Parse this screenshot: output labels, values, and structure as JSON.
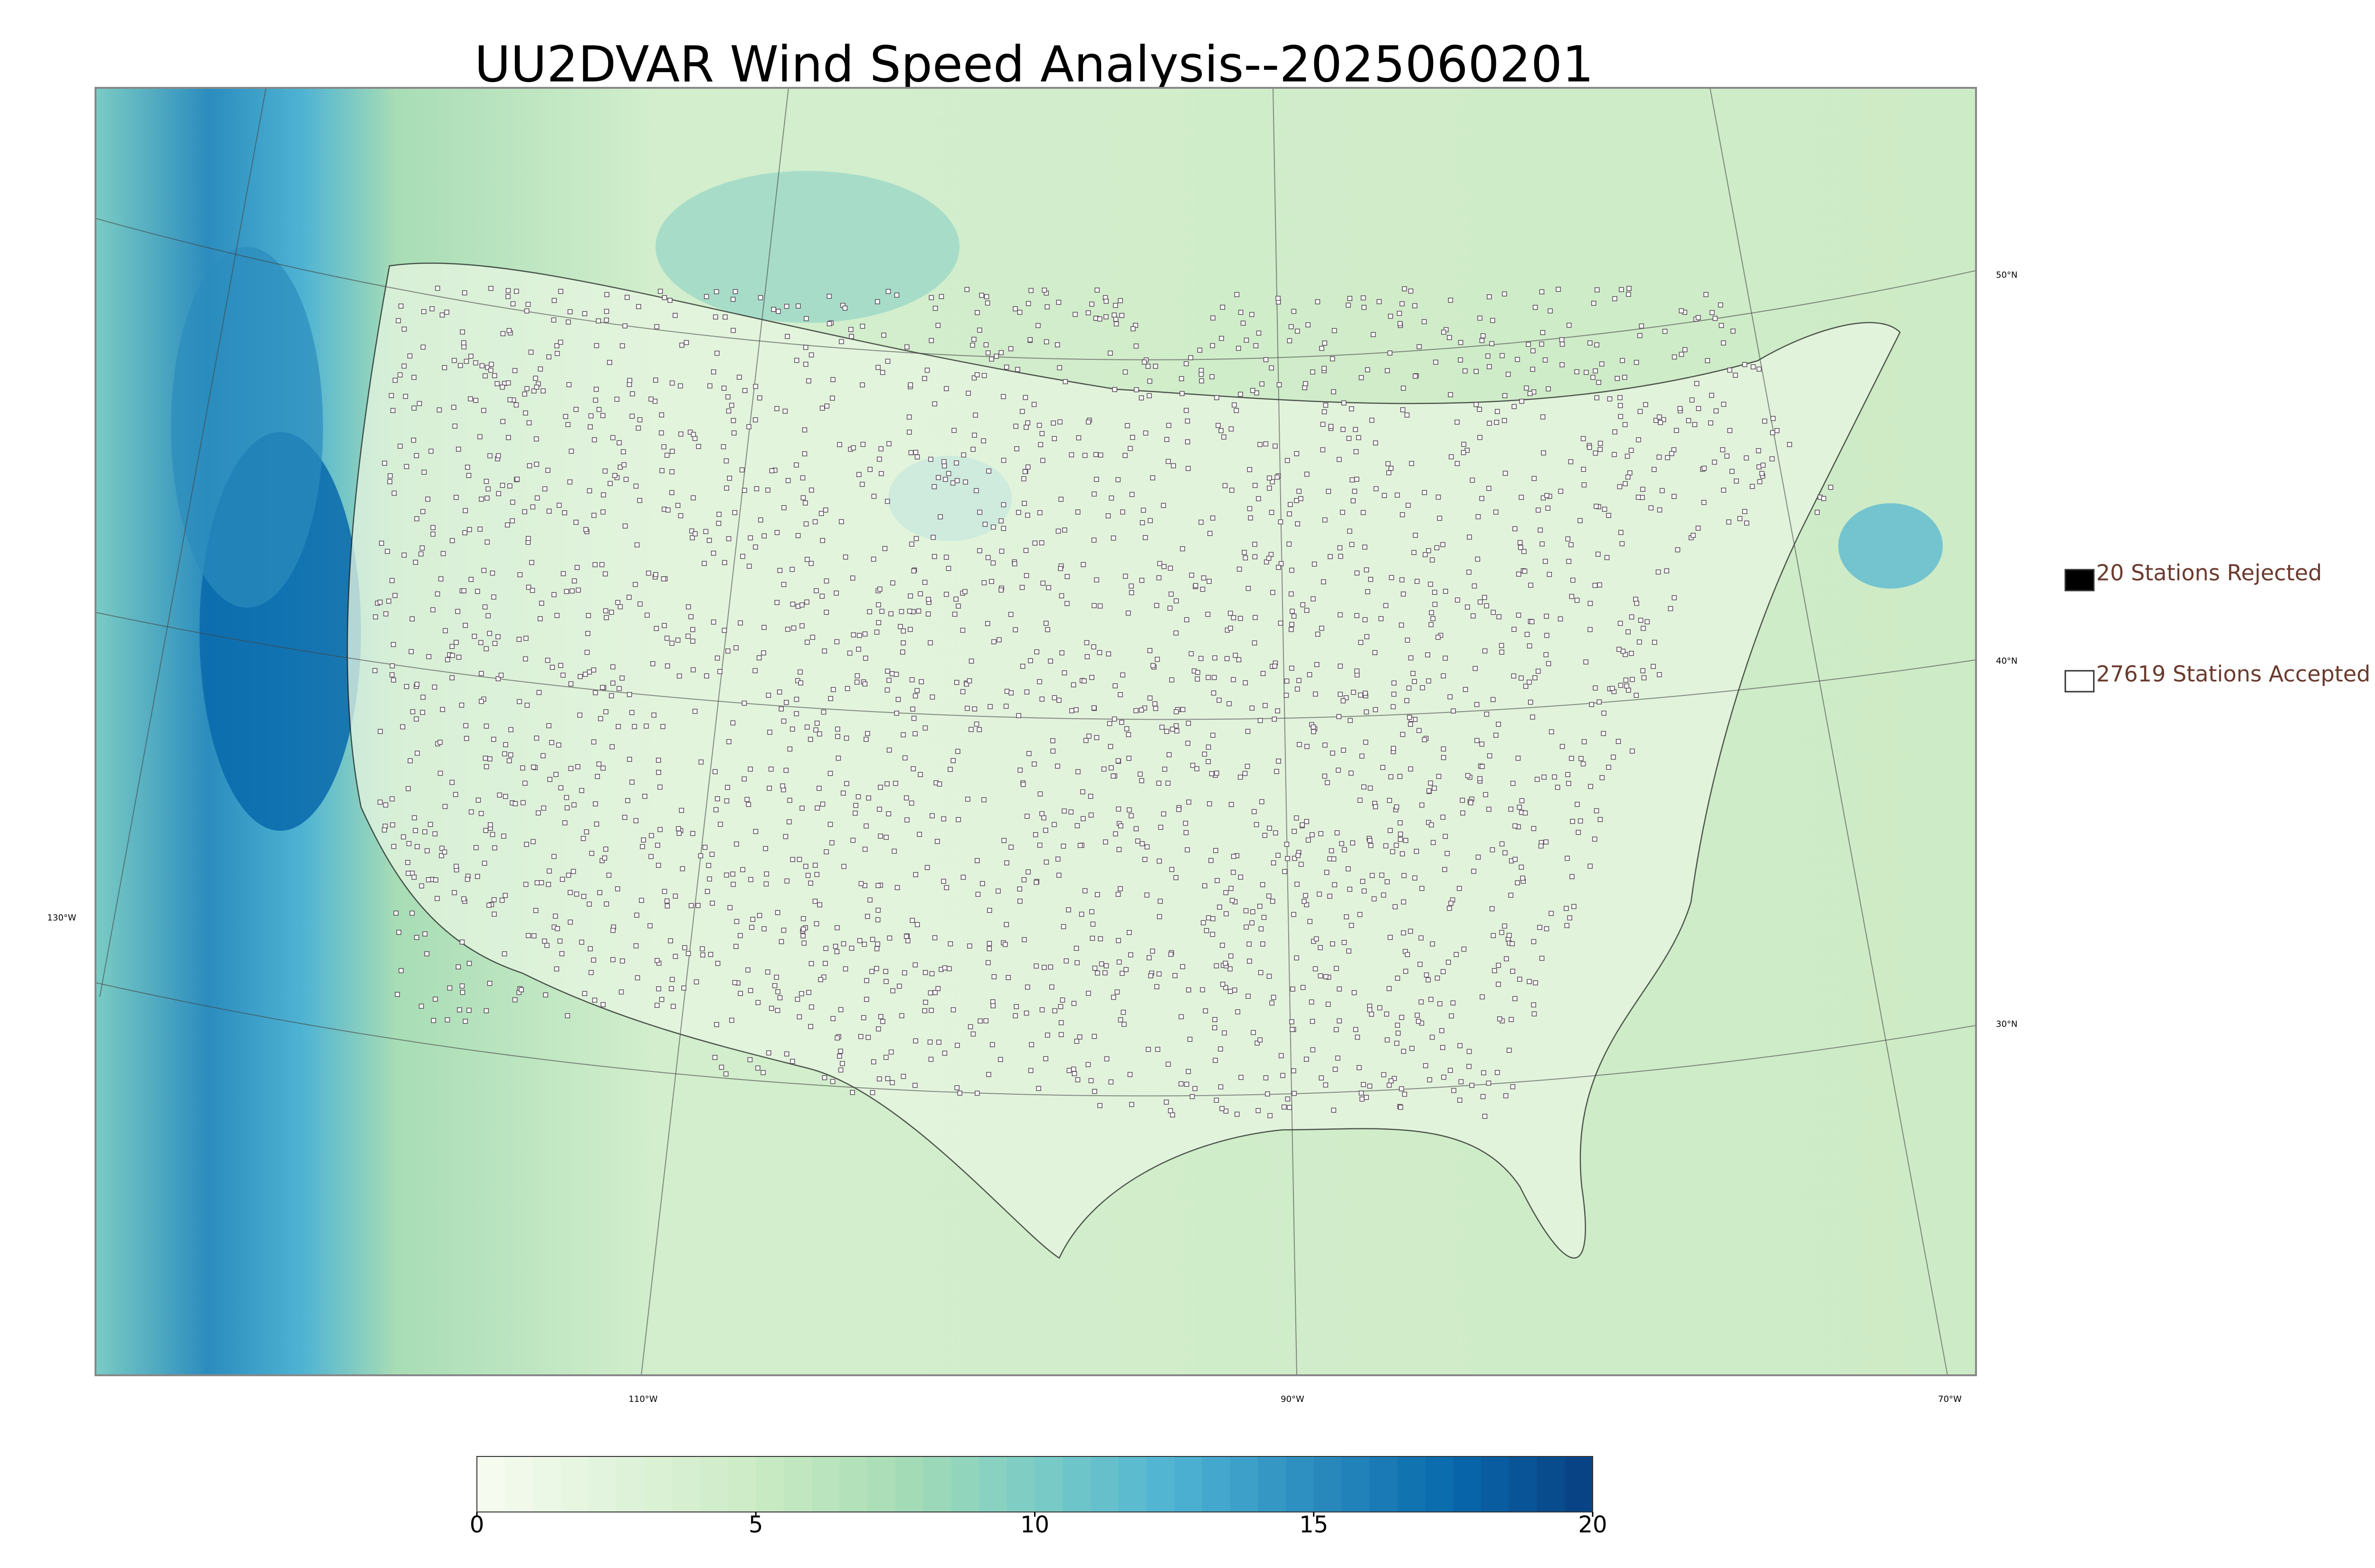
{
  "title": "UU2DVAR Wind Speed Analysis--2025060201",
  "legend": {
    "rejected": "20 Stations Rejected",
    "accepted": "27619 Stations Accepted",
    "rejected_color": "#000000",
    "accepted_color": "#ffffff"
  },
  "graticule": {
    "lat_labels": [
      "50°N",
      "40°N",
      "30°N"
    ],
    "lon_labels": [
      "130°W",
      "110°W",
      "90°W",
      "70°W"
    ]
  },
  "colorbar": {
    "range": [
      0,
      20
    ],
    "ticks": [
      0,
      5,
      10,
      15,
      20
    ],
    "colors": [
      "#f7fcf0",
      "#e0f3db",
      "#ccebc5",
      "#a8ddb5",
      "#7bccc4",
      "#4eb3d3",
      "#2b8cbe",
      "#0868ac",
      "#084081"
    ]
  }
}
